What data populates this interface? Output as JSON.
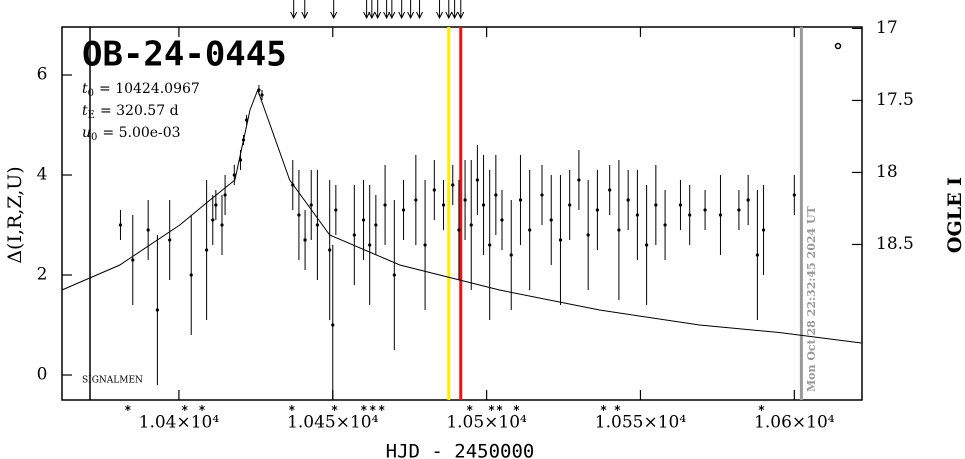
{
  "chart_data": {
    "type": "scatter",
    "title": "OB-24-0445",
    "parameters": [
      {
        "symbol": "t",
        "subscript": "0",
        "value": "= 10424.0967"
      },
      {
        "symbol": "t",
        "subscript": "E",
        "value": "= 320.57 d"
      },
      {
        "symbol": "u",
        "subscript": "0",
        "value": "= 5.00e-03"
      }
    ],
    "observatory": "SIGNALMEN",
    "timestamp": "Mon Oct 28 22:32:45 2024 UT",
    "x_label": "HJD - 2450000",
    "y_label": "Δ(I,R,Z,U)",
    "y2_label": "OGLE I",
    "xlim": [
      10362,
      10622
    ],
    "ylim": [
      -0.5,
      6.96
    ],
    "y2lim": [
      16.99,
      19.58
    ],
    "xticks": [
      {
        "value": 10400,
        "label": "1.04×10⁴"
      },
      {
        "value": 10450,
        "label": "1.045×10⁴"
      },
      {
        "value": 10500,
        "label": "1.05×10⁴"
      },
      {
        "value": 10550,
        "label": "1.055×10⁴"
      },
      {
        "value": 10600,
        "label": "1.06×10⁴"
      }
    ],
    "yticks": [
      0,
      2,
      4,
      6
    ],
    "y2ticks": [
      17,
      17.5,
      18,
      18.5
    ],
    "color": "#000000",
    "x": [
      10381,
      10385,
      10390,
      10393,
      10397,
      10404,
      10409,
      10411,
      10412,
      10414,
      10415,
      10418,
      10420,
      10421,
      10422,
      10426,
      10427,
      10437,
      10439,
      10441,
      10443,
      10445,
      10449,
      10450,
      10451,
      10457,
      10460,
      10462,
      10464,
      10467,
      10470,
      10473,
      10477,
      10480,
      10483,
      10486,
      10489,
      10491,
      10493,
      10495,
      10497,
      10499,
      10501,
      10503,
      10505,
      10508,
      10511,
      10514,
      10518,
      10521,
      10524,
      10527,
      10530,
      10533,
      10536,
      10540,
      10543,
      10546,
      10549,
      10552,
      10555,
      10558,
      10563,
      10566,
      10571,
      10576,
      10582,
      10585,
      10588,
      10590,
      10600
    ],
    "values": [
      3.0,
      2.3,
      2.9,
      1.3,
      2.7,
      2.0,
      2.5,
      3.1,
      3.4,
      3.0,
      3.6,
      4.0,
      4.3,
      4.7,
      5.1,
      5.7,
      5.6,
      3.8,
      3.2,
      2.7,
      3.4,
      3.0,
      2.5,
      1.0,
      3.3,
      2.8,
      3.1,
      2.6,
      3.0,
      3.4,
      2.0,
      3.3,
      3.5,
      2.6,
      3.7,
      3.4,
      3.8,
      2.9,
      3.5,
      3.0,
      3.9,
      3.4,
      2.6,
      3.6,
      3.1,
      2.4,
      3.5,
      2.9,
      3.6,
      3.1,
      2.7,
      3.4,
      3.9,
      2.8,
      3.3,
      3.7,
      2.9,
      3.5,
      3.2,
      2.6,
      3.4,
      3.0,
      3.4,
      3.2,
      3.3,
      3.2,
      3.3,
      3.5,
      2.4,
      2.9,
      3.6
    ],
    "errors": [
      0.3,
      0.9,
      0.6,
      1.5,
      0.8,
      1.2,
      1.4,
      0.5,
      0.3,
      0.6,
      0.4,
      0.2,
      0.2,
      0.1,
      0.1,
      0.1,
      0.1,
      0.5,
      0.9,
      0.6,
      0.7,
      1.1,
      1.4,
      1.6,
      0.5,
      1.0,
      0.8,
      1.2,
      0.6,
      0.8,
      1.5,
      0.6,
      0.9,
      1.3,
      0.6,
      0.5,
      0.4,
      1.0,
      0.8,
      1.3,
      0.7,
      1.0,
      1.5,
      0.8,
      0.6,
      1.1,
      0.9,
      1.2,
      0.6,
      0.9,
      1.3,
      0.7,
      0.6,
      1.1,
      0.8,
      0.5,
      1.4,
      0.6,
      0.9,
      1.2,
      0.8,
      0.7,
      0.5,
      0.6,
      0.4,
      0.8,
      0.4,
      0.5,
      1.3,
      0.9,
      0.4
    ],
    "model": {
      "x": [
        10362.0,
        10380.8,
        10400.3,
        10410.1,
        10418.2,
        10423.1,
        10425.6,
        10427.9,
        10436.0,
        10449.0,
        10471.8,
        10504.2,
        10536.7,
        10569.2,
        10595.1,
        10621.8
      ],
      "values": [
        1.7,
        2.2,
        3.0,
        3.5,
        3.9,
        5.3,
        5.7,
        5.3,
        3.9,
        2.8,
        2.2,
        1.7,
        1.3,
        1.0,
        0.85,
        0.64
      ]
    },
    "vertical_lines": [
      {
        "x": 10371.1,
        "color": "#000000"
      },
      {
        "x": 10487.7,
        "color": "#ffee00"
      },
      {
        "x": 10491.6,
        "color": "#ee1111"
      },
      {
        "x": 10602.3,
        "color": "#999999"
      }
    ],
    "top_arrows": [
      10437.3,
      10440.9,
      10450.3,
      10461.0,
      10462.7,
      10464.6,
      10467.5,
      10469.2,
      10472.4,
      10475.3,
      10478.2,
      10484.7,
      10487.7,
      10489.6,
      10491.6
    ],
    "bottom_stars": [
      10383.4,
      10401.9,
      10407.5,
      10436.7,
      10450.6,
      10460.1,
      10463.0,
      10465.9,
      10494.5,
      10501.6,
      10504.2,
      10509.7,
      10538.0,
      10542.5,
      10589.3
    ]
  }
}
